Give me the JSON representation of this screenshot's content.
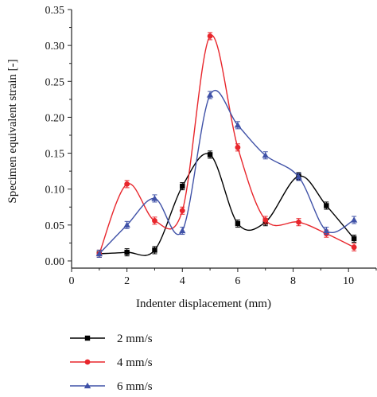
{
  "chart_data": {
    "type": "line",
    "xlabel": "Indenter displacement (mm)",
    "ylabel": "Specimen equivalent strain [-]",
    "xlim": [
      0,
      11
    ],
    "ylim": [
      -0.01,
      0.35
    ],
    "x_ticks": [
      0,
      2,
      4,
      6,
      8,
      10
    ],
    "x_tick_labels": [
      "0",
      "2",
      "4",
      "6",
      "8",
      "10"
    ],
    "y_ticks": [
      0.0,
      0.05,
      0.1,
      0.15,
      0.2,
      0.25,
      0.3,
      0.35
    ],
    "y_tick_labels": [
      "0.00",
      "0.05",
      "0.10",
      "0.15",
      "0.20",
      "0.25",
      "0.30",
      "0.35"
    ],
    "grid": false,
    "legend_position": "bottom-left",
    "x": [
      1,
      2,
      3,
      4,
      5,
      6,
      7,
      8.2,
      9.2,
      10.2
    ],
    "series": [
      {
        "name": "2 mm/s",
        "color": "#000000",
        "marker": "square",
        "values": [
          0.01,
          0.012,
          0.015,
          0.104,
          0.148,
          0.052,
          0.054,
          0.118,
          0.077,
          0.031
        ],
        "errors": [
          0.005,
          0.005,
          0.005,
          0.005,
          0.005,
          0.005,
          0.005,
          0.005,
          0.005,
          0.005
        ]
      },
      {
        "name": "4 mm/s",
        "color": "#e8262c",
        "marker": "circle",
        "values": [
          0.01,
          0.107,
          0.056,
          0.07,
          0.313,
          0.158,
          0.057,
          0.054,
          0.038,
          0.019
        ],
        "errors": [
          0.005,
          0.005,
          0.005,
          0.005,
          0.005,
          0.005,
          0.005,
          0.005,
          0.005,
          0.005
        ]
      },
      {
        "name": "6 mm/s",
        "color": "#3f51a7",
        "marker": "triangle",
        "values": [
          0.01,
          0.05,
          0.087,
          0.042,
          0.231,
          0.189,
          0.147,
          0.117,
          0.042,
          0.057
        ],
        "errors": [
          0.005,
          0.005,
          0.005,
          0.005,
          0.005,
          0.005,
          0.005,
          0.005,
          0.005,
          0.005
        ]
      }
    ]
  }
}
